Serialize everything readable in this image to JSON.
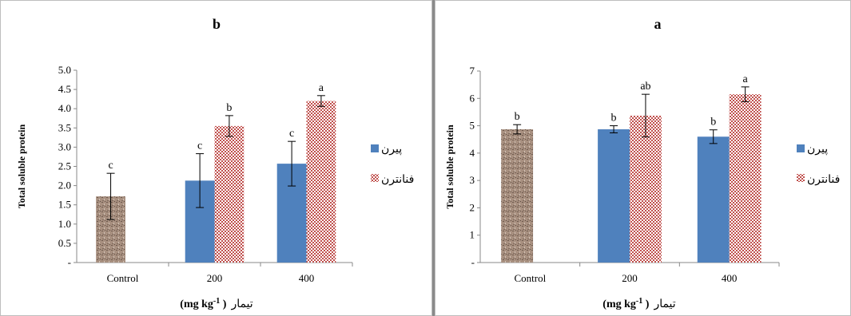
{
  "colors": {
    "control": "#a38a7a",
    "series1": "#4f81bd",
    "series2": "#c0504d",
    "axis": "#888888"
  },
  "chart_data": [
    {
      "type": "bar",
      "title": "b",
      "ylabel": "Total soluble protein",
      "xlabel": "(mg kg-1 ) تیمار",
      "xlabel_main": "تیمار",
      "xlabel_unit": "(mg kg",
      "xlabel_exp": "-1",
      "xlabel_close": " )",
      "categories": [
        "Control",
        "200",
        "400"
      ],
      "ylim": [
        0,
        5
      ],
      "yticks": [
        "-",
        "0.5",
        "1.0",
        "1.5",
        "2.0",
        "2.5",
        "3.0",
        "3.5",
        "4.0",
        "4.5",
        "5.0"
      ],
      "legend": [
        "پیرن",
        "فنانترن"
      ],
      "legend_position": "right",
      "control": {
        "value": 1.72,
        "err": 0.6,
        "letter": "c"
      },
      "series": [
        {
          "name": "پیرن",
          "values": [
            null,
            2.13,
            2.57
          ],
          "err": [
            null,
            0.7,
            0.58
          ],
          "letters": [
            null,
            "c",
            "c"
          ]
        },
        {
          "name": "فنانترن",
          "values": [
            null,
            3.55,
            4.2
          ],
          "err": [
            null,
            0.27,
            0.14
          ],
          "letters": [
            null,
            "b",
            "a"
          ]
        }
      ]
    },
    {
      "type": "bar",
      "title": "a",
      "ylabel": "Total soluble protein",
      "xlabel": "(mg kg-1 ) تیمار",
      "xlabel_main": "تیمار",
      "xlabel_unit": "(mg kg",
      "xlabel_exp": "-1",
      "xlabel_close": " )",
      "categories": [
        "Control",
        "200",
        "400"
      ],
      "ylim": [
        0,
        7
      ],
      "yticks": [
        "-",
        "1",
        "2",
        "3",
        "4",
        "5",
        "6",
        "7"
      ],
      "legend": [
        "پیرن",
        "فنانترن"
      ],
      "legend_position": "right",
      "control": {
        "value": 4.87,
        "err": 0.17,
        "letter": "b"
      },
      "series": [
        {
          "name": "پیرن",
          "values": [
            null,
            4.87,
            4.6
          ],
          "err": [
            null,
            0.13,
            0.25
          ],
          "letters": [
            null,
            "b",
            "b"
          ]
        },
        {
          "name": "فنانترن",
          "values": [
            null,
            5.37,
            6.15
          ],
          "err": [
            null,
            0.78,
            0.27
          ],
          "letters": [
            null,
            "ab",
            "a"
          ]
        }
      ]
    }
  ]
}
